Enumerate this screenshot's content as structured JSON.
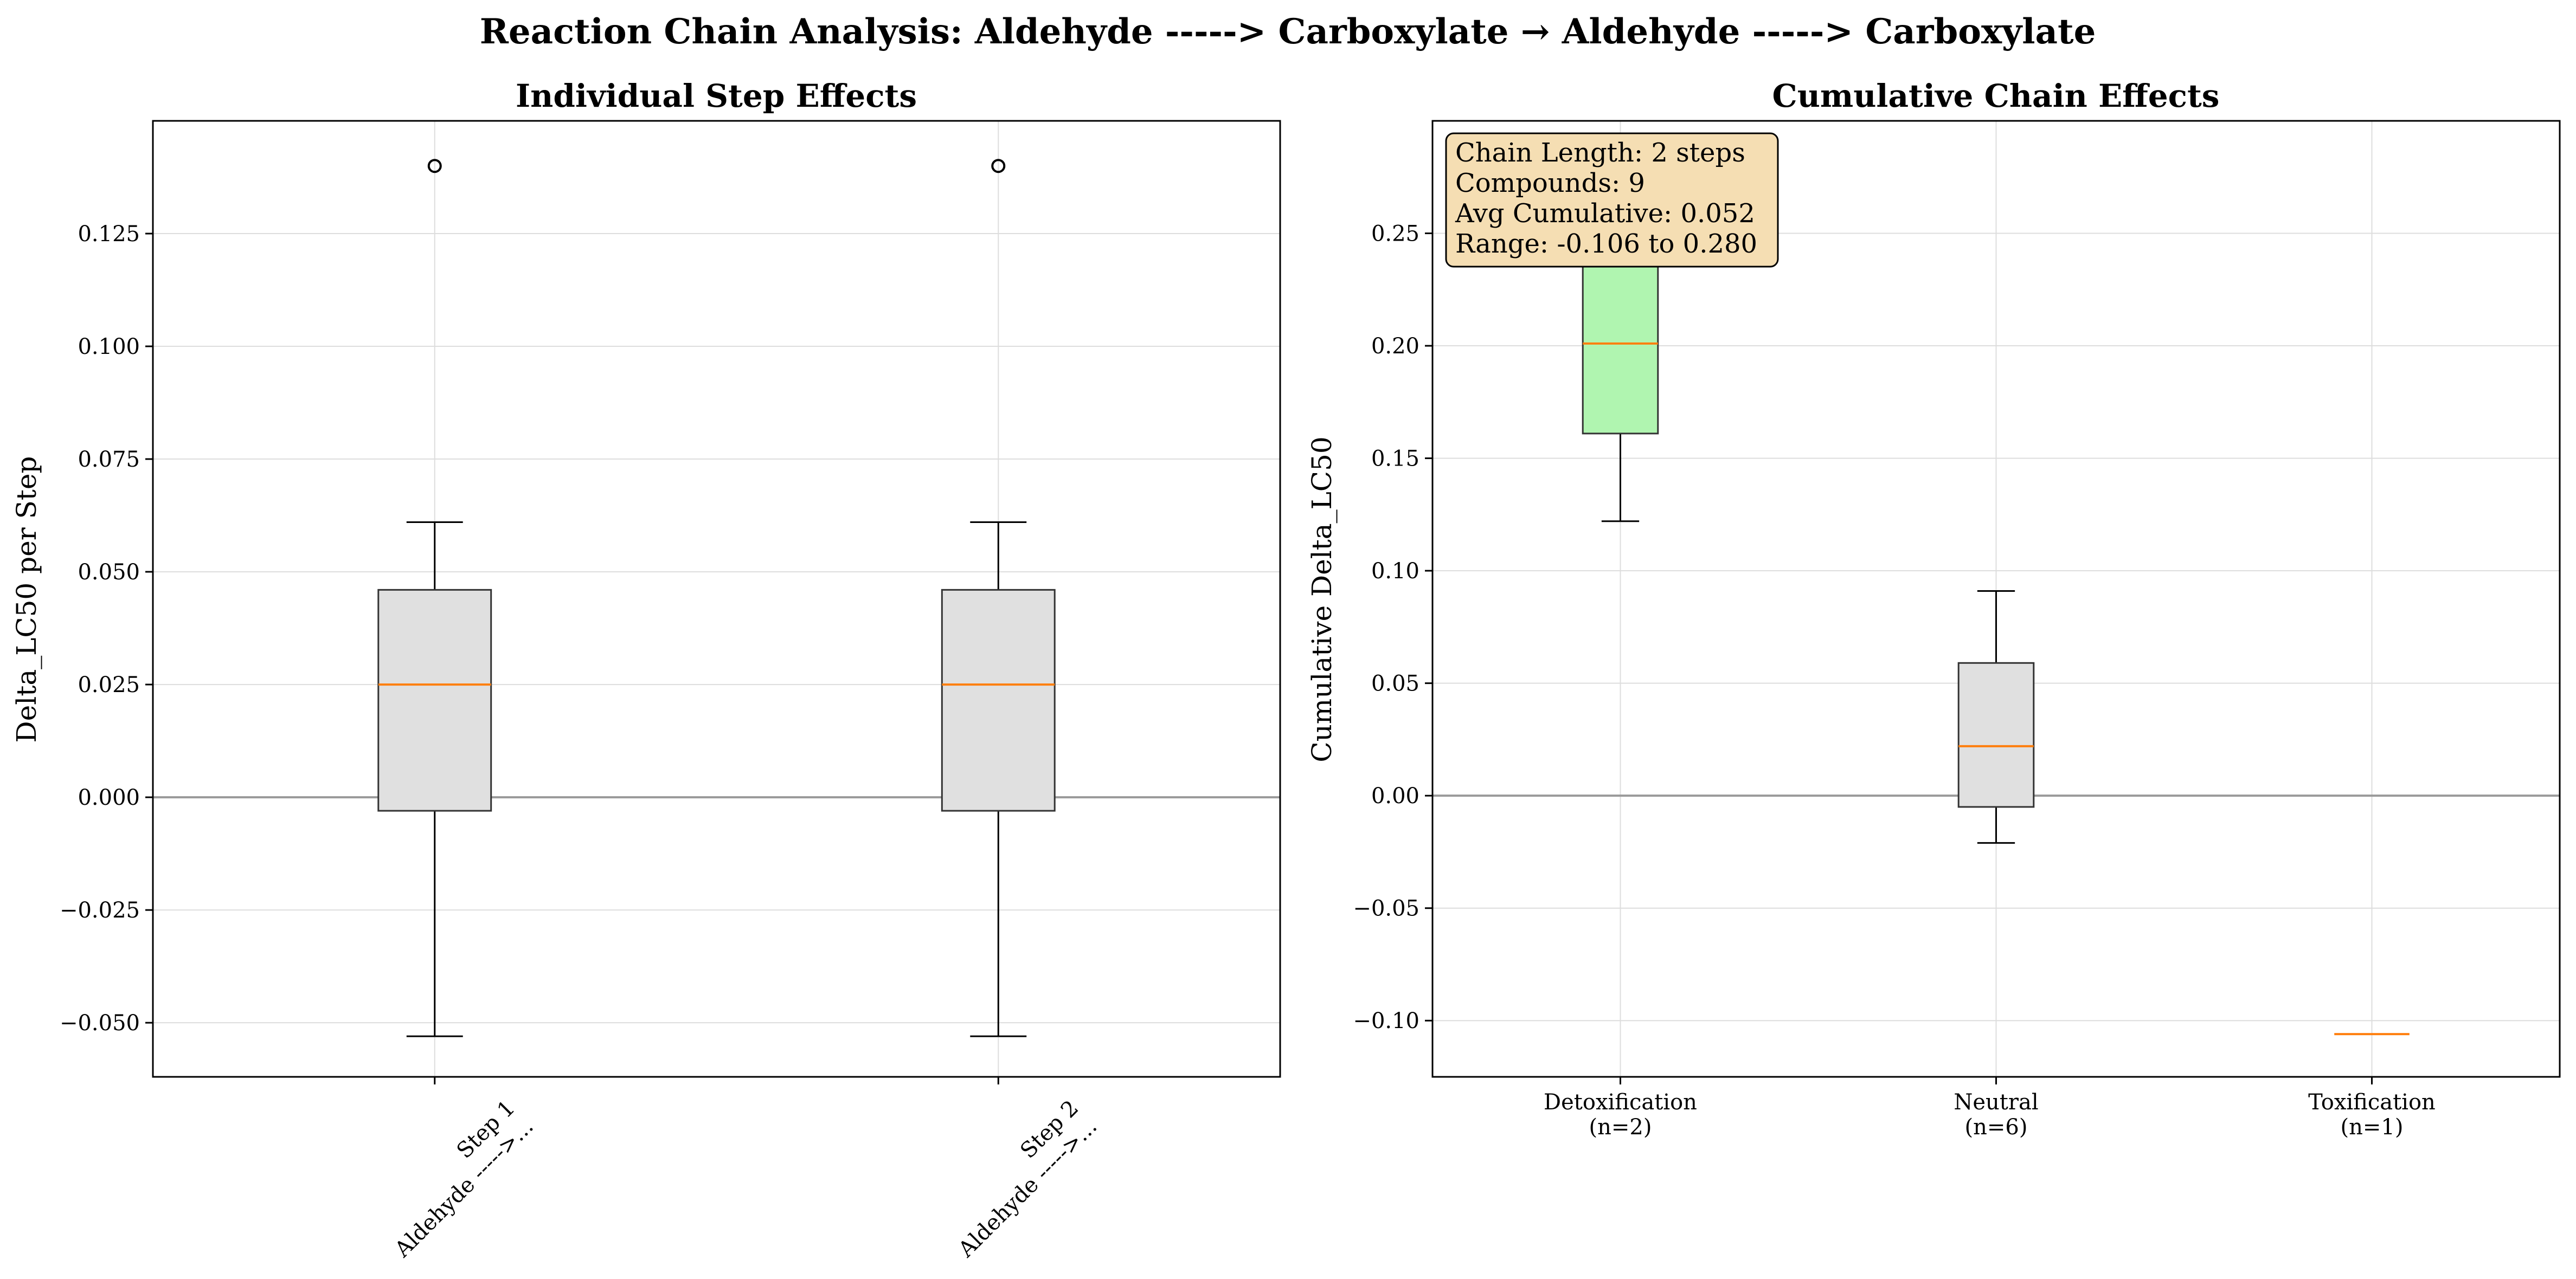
{
  "figure": {
    "suptitle": "Reaction Chain Analysis: Aldehyde -----> Carboxylate → Aldehyde -----> Carboxylate"
  },
  "chart_data": [
    {
      "type": "box",
      "title": "Individual Step Effects",
      "xlabel": "",
      "ylabel": "Delta_LC50 per Step",
      "ylim": [
        -0.062,
        0.15
      ],
      "yticks": [
        -0.05,
        -0.025,
        0.0,
        0.025,
        0.05,
        0.075,
        0.1,
        0.125
      ],
      "ytick_labels": [
        "−0.050",
        "−0.025",
        "0.000",
        "0.025",
        "0.050",
        "0.075",
        "0.100",
        "0.125"
      ],
      "grid": true,
      "zero_line": true,
      "box_color": "#e0e0e0",
      "median_color": "#ff7f0e",
      "categories": [
        {
          "line1": "Step 1",
          "line2": "Aldehyde ----->..."
        },
        {
          "line1": "Step 2",
          "line2": "Aldehyde ----->..."
        }
      ],
      "boxes": [
        {
          "whislo": -0.053,
          "q1": -0.003,
          "med": 0.025,
          "q3": 0.046,
          "whishi": 0.061,
          "fliers": [
            0.14
          ]
        },
        {
          "whislo": -0.053,
          "q1": -0.003,
          "med": 0.025,
          "q3": 0.046,
          "whishi": 0.061,
          "fliers": [
            0.14
          ]
        }
      ]
    },
    {
      "type": "box",
      "title": "Cumulative Chain Effects",
      "xlabel": "",
      "ylabel": "Cumulative Delta_LC50",
      "ylim": [
        -0.125,
        0.3
      ],
      "yticks": [
        -0.1,
        -0.05,
        0.0,
        0.05,
        0.1,
        0.15,
        0.2,
        0.25
      ],
      "ytick_labels": [
        "−0.10",
        "−0.05",
        "0.00",
        "0.05",
        "0.10",
        "0.15",
        "0.20",
        "0.25"
      ],
      "grid": true,
      "zero_line": true,
      "median_color": "#ff7f0e",
      "categories": [
        {
          "line1": "Detoxification",
          "line2": "(n=2)"
        },
        {
          "line1": "Neutral",
          "line2": "(n=6)"
        },
        {
          "line1": "Toxification",
          "line2": "(n=1)"
        }
      ],
      "boxes": [
        {
          "whislo": 0.122,
          "q1": 0.161,
          "med": 0.201,
          "q3": 0.24,
          "whishi": 0.28,
          "fliers": [],
          "color": "#b0f5b0"
        },
        {
          "whislo": -0.021,
          "q1": -0.005,
          "med": 0.022,
          "q3": 0.059,
          "whishi": 0.091,
          "fliers": [],
          "color": "#e0e0e0"
        },
        {
          "whislo": -0.106,
          "q1": -0.106,
          "med": -0.106,
          "q3": -0.106,
          "whishi": -0.106,
          "fliers": [],
          "color": "#ffb0b0"
        }
      ],
      "info_box": {
        "lines": [
          "Chain Length: 2 steps",
          "Compounds: 9",
          "Avg Cumulative: 0.052",
          "Range: -0.106 to 0.280"
        ],
        "bg_color": "#f5deb3",
        "position": "top-left"
      }
    }
  ]
}
